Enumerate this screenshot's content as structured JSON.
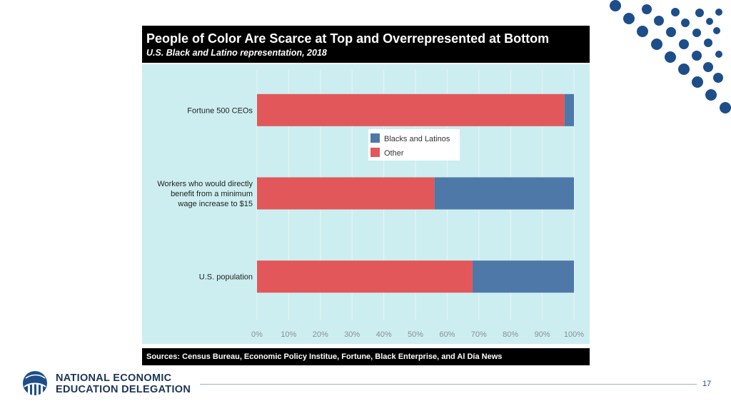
{
  "slide": {
    "title": "People of Color Are Scarce at Top and Overrepresented at Bottom",
    "subtitle": "U.S. Black and Latino representation, 2018",
    "sources": "Sources: Census Bureau, Economic Policy Institue, Fortune, Black Enterprise, and Al Día News",
    "page_number": "17",
    "logo_line1": "NATIONAL ECONOMIC",
    "logo_line2": "EDUCATION DELEGATION"
  },
  "colors": {
    "blacks_latinos": "#4e78a7",
    "other": "#e1575a",
    "panel": "#cdeef0",
    "brand": "#1d4e89"
  },
  "chart_data": {
    "type": "bar",
    "orientation": "horizontal",
    "stacked": true,
    "categories": [
      "Fortune 500 CEOs",
      "Workers who would directly benefit from a minimum wage increase to $15",
      "U.S. population"
    ],
    "category_lines": [
      [
        "Fortune 500 CEOs"
      ],
      [
        "Workers who would directly",
        "benefit from a minimum",
        "wage increase to $15"
      ],
      [
        "U.S. population"
      ]
    ],
    "series": [
      {
        "name": "Other",
        "values": [
          97,
          56,
          68
        ]
      },
      {
        "name": "Blacks and Latinos",
        "values": [
          3,
          44,
          32
        ]
      }
    ],
    "legend": [
      "Blacks and Latinos",
      "Other"
    ],
    "legend_position": "center-top",
    "xlim": [
      0,
      100
    ],
    "xticks": [
      "0%",
      "10%",
      "20%",
      "30%",
      "40%",
      "50%",
      "60%",
      "70%",
      "80%",
      "90%",
      "100%"
    ],
    "grid": true
  }
}
